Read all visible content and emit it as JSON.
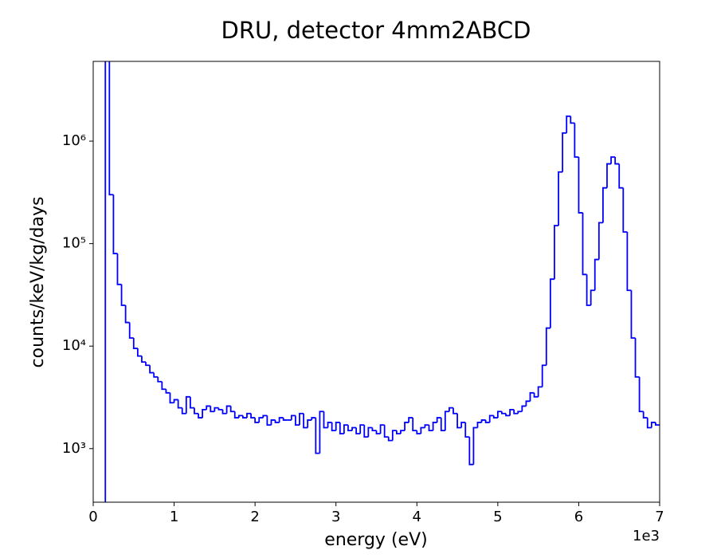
{
  "chart_data": {
    "type": "histogram",
    "title": "DRU, detector 4mm2ABCD",
    "xlabel": "energy (eV)",
    "ylabel": "counts/keV/kg/days",
    "x_offset_text": "1e3",
    "color": "#0000ff",
    "log_y": true,
    "xlim": [
      0,
      7
    ],
    "xticks": [
      0,
      1,
      2,
      3,
      4,
      5,
      6,
      7
    ],
    "ylim": [
      300,
      6000000
    ],
    "yticks": [
      {
        "value": 1000,
        "label": "10³"
      },
      {
        "value": 10000,
        "label": "10⁴"
      },
      {
        "value": 100000,
        "label": "10⁵"
      },
      {
        "value": 1000000,
        "label": "10⁶"
      }
    ],
    "bins": [
      0.15,
      0.2,
      0.25,
      0.3,
      0.35,
      0.4,
      0.45,
      0.5,
      0.55,
      0.6,
      0.65,
      0.7,
      0.75,
      0.8,
      0.85,
      0.9,
      0.95,
      1.0,
      1.05,
      1.1,
      1.15,
      1.2,
      1.25,
      1.3,
      1.35,
      1.4,
      1.45,
      1.5,
      1.55,
      1.6,
      1.65,
      1.7,
      1.75,
      1.8,
      1.85,
      1.9,
      1.95,
      2.0,
      2.05,
      2.1,
      2.15,
      2.2,
      2.25,
      2.3,
      2.35,
      2.4,
      2.45,
      2.5,
      2.55,
      2.6,
      2.65,
      2.7,
      2.75,
      2.8,
      2.85,
      2.9,
      2.95,
      3.0,
      3.05,
      3.1,
      3.15,
      3.2,
      3.25,
      3.3,
      3.35,
      3.4,
      3.45,
      3.5,
      3.55,
      3.6,
      3.65,
      3.7,
      3.75,
      3.8,
      3.85,
      3.9,
      3.95,
      4.0,
      4.05,
      4.1,
      4.15,
      4.2,
      4.25,
      4.3,
      4.35,
      4.4,
      4.45,
      4.5,
      4.55,
      4.6,
      4.65,
      4.7,
      4.75,
      4.8,
      4.85,
      4.9,
      4.95,
      5.0,
      5.05,
      5.1,
      5.15,
      5.2,
      5.25,
      5.3,
      5.35,
      5.4,
      5.45,
      5.5,
      5.55,
      5.6,
      5.65,
      5.7,
      5.75,
      5.8,
      5.85,
      5.9,
      5.95,
      6.0,
      6.05,
      6.1,
      6.15,
      6.2,
      6.25,
      6.3,
      6.35,
      6.4,
      6.45,
      6.5,
      6.55,
      6.6,
      6.65,
      6.7,
      6.75,
      6.8,
      6.85,
      6.9,
      6.95,
      7.0
    ],
    "values": [
      8000000,
      300000,
      80000,
      40000,
      25000,
      17000,
      12000,
      9500,
      8000,
      7000,
      6500,
      5500,
      5000,
      4500,
      3800,
      3500,
      2800,
      3000,
      2500,
      2200,
      3200,
      2500,
      2200,
      2000,
      2400,
      2600,
      2300,
      2500,
      2400,
      2200,
      2600,
      2300,
      2000,
      2100,
      2000,
      2200,
      2000,
      1800,
      2000,
      2100,
      1700,
      1900,
      1800,
      2000,
      1900,
      1900,
      2100,
      1700,
      2200,
      1600,
      1900,
      2000,
      900,
      2300,
      1600,
      1800,
      1500,
      1800,
      1400,
      1700,
      1500,
      1600,
      1400,
      1700,
      1300,
      1600,
      1500,
      1400,
      1700,
      1300,
      1200,
      1500,
      1400,
      1500,
      1800,
      2000,
      1500,
      1400,
      1600,
      1700,
      1500,
      1800,
      2000,
      1500,
      2300,
      2500,
      2200,
      1600,
      1800,
      1300,
      700,
      1600,
      1800,
      1900,
      1800,
      2100,
      2000,
      2300,
      2200,
      2100,
      2400,
      2200,
      2300,
      2600,
      2900,
      3500,
      3200,
      4000,
      6500,
      15000,
      45000,
      150000,
      500000,
      1200000,
      1750000,
      1500000,
      700000,
      200000,
      50000,
      25000,
      35000,
      70000,
      160000,
      350000,
      600000,
      700000,
      600000,
      350000,
      130000,
      35000,
      12000,
      5000,
      2300,
      2000,
      1600,
      1800,
      1700
    ]
  }
}
